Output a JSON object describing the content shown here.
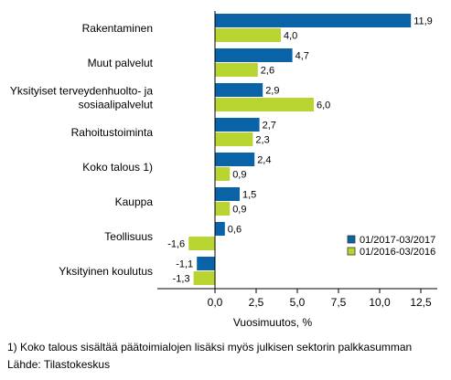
{
  "chart_data": {
    "type": "bar",
    "orientation": "horizontal",
    "categories": [
      "Rakentaminen",
      "Muut palvelut",
      "Yksityiset terveydenhuolto- ja sosiaalipalvelut",
      "Rahoitustoiminta",
      "Koko talous 1)",
      "Kauppa",
      "Teollisuus",
      "Yksityinen koulutus"
    ],
    "category_lines": [
      [
        "Rakentaminen"
      ],
      [
        "Muut palvelut"
      ],
      [
        "Yksityiset terveydenhuolto- ja",
        "sosiaalipalvelut"
      ],
      [
        "Rahoitustoiminta"
      ],
      [
        "Koko talous 1)"
      ],
      [
        "Kauppa"
      ],
      [
        "Teollisuus"
      ],
      [
        "Yksityinen koulutus"
      ]
    ],
    "series": [
      {
        "name": "01/2017-03/2017",
        "color": "#0a63a7",
        "values": [
          11.9,
          4.7,
          2.9,
          2.7,
          2.4,
          1.5,
          0.6,
          -1.1
        ],
        "labels": [
          "11,9",
          "4,7",
          "2,9",
          "2,7",
          "2,4",
          "1,5",
          "0,6",
          "-1,1"
        ]
      },
      {
        "name": "01/2016-03/2016",
        "color": "#b8d431",
        "values": [
          4.0,
          2.6,
          6.0,
          2.3,
          0.9,
          0.9,
          -1.6,
          -1.3
        ],
        "labels": [
          "4,0",
          "2,6",
          "6,0",
          "2,3",
          "0,9",
          "0,9",
          "-1,6",
          "-1,3"
        ]
      }
    ],
    "xlabel": "Vuosimuutos, %",
    "xlim": [
      -3.5,
      13.5
    ],
    "xticks": [
      0,
      2.5,
      5,
      7.5,
      10,
      12.5
    ],
    "xtick_labels": [
      "0,0",
      "2,5",
      "5,0",
      "7,5",
      "10,0",
      "12,5"
    ],
    "grid": false,
    "legend_position": "bottom-right"
  },
  "footnotes": {
    "note": "1) Koko talous sisältää päätoimialojen lisäksi myös julkisen sektorin palkkasumman",
    "source": "Lähde: Tilastokeskus"
  }
}
